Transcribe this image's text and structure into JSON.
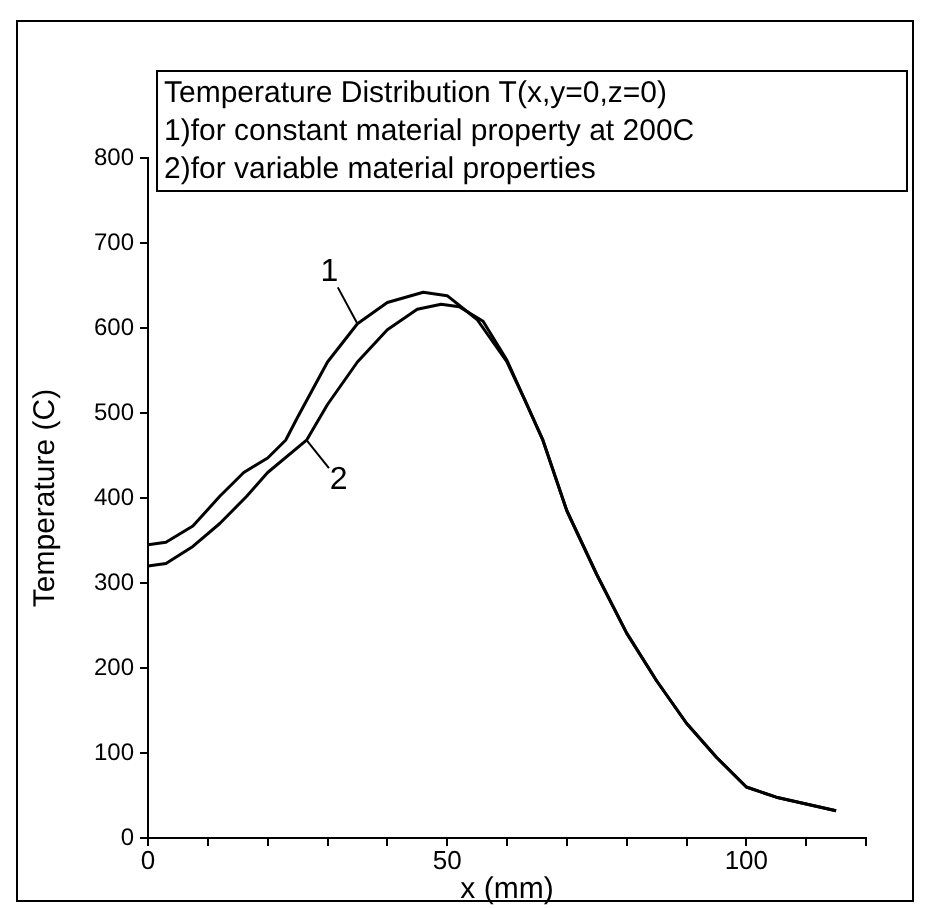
{
  "chart_data": {
    "type": "line",
    "title": "Temperature Distribution T(x,y=0,z=0)",
    "annotations": [
      "1)for constant material property at 200C",
      "2)for variable material properties"
    ],
    "xlabel": "x (mm)",
    "ylabel": "Temperature (C)",
    "xlim": [
      0,
      120
    ],
    "xticks": [
      0,
      {
        "value": 10,
        "label": null
      },
      {
        "value": 20,
        "label": null
      },
      {
        "value": 30,
        "label": null
      },
      {
        "value": 40,
        "label": null
      },
      50,
      {
        "value": 60,
        "label": null
      },
      {
        "value": 70,
        "label": null
      },
      {
        "value": 80,
        "label": null
      },
      {
        "value": 90,
        "label": null
      },
      100,
      {
        "value": 110,
        "label": null
      },
      {
        "value": 120,
        "label": null
      }
    ],
    "ylim": [
      0,
      800
    ],
    "yticks": [
      0,
      100,
      200,
      300,
      400,
      500,
      600,
      700,
      800
    ],
    "grid": false,
    "series": [
      {
        "name": "1",
        "color": "#000000",
        "x": [
          0,
          3,
          7.5,
          12,
          16,
          20,
          23,
          25,
          30,
          35,
          40,
          46,
          50,
          55,
          60,
          63,
          66,
          70,
          75,
          80,
          85,
          90,
          95,
          100,
          105,
          110,
          115
        ],
        "values": [
          345,
          348,
          367,
          402,
          430,
          447,
          468,
          495,
          560,
          605,
          630,
          642,
          638,
          610,
          560,
          515,
          468,
          385,
          310,
          241,
          185,
          135,
          95,
          60,
          48,
          40,
          32
        ]
      },
      {
        "name": "2",
        "color": "#000000",
        "x": [
          0,
          3,
          7.5,
          12,
          16.5,
          20,
          26.5,
          30,
          35,
          40,
          45,
          49,
          52,
          56,
          60,
          63,
          66,
          70,
          75,
          80,
          85,
          90,
          95,
          100,
          105,
          110,
          115
        ],
        "values": [
          320,
          323,
          343,
          370,
          402,
          430,
          468,
          510,
          560,
          598,
          622,
          628,
          625,
          608,
          562,
          515,
          468,
          385,
          310,
          241,
          185,
          135,
          95,
          60,
          48,
          40,
          32
        ]
      }
    ]
  }
}
